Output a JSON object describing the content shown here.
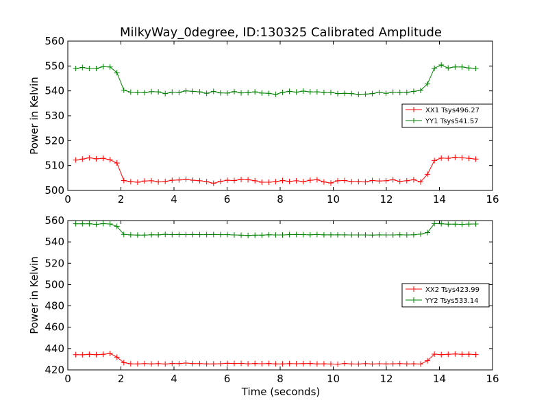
{
  "chart_data": [
    {
      "type": "line",
      "title": "MilkyWay_0degree, ID:130325 Calibrated Amplitude",
      "xlabel": "",
      "ylabel": "Power in Kelvin",
      "xlim": [
        0,
        16
      ],
      "ylim": [
        500,
        560
      ],
      "xticks": [
        0,
        2,
        4,
        6,
        8,
        10,
        12,
        14,
        16
      ],
      "yticks": [
        500,
        510,
        520,
        530,
        540,
        550,
        560
      ],
      "grid": false,
      "legend": "center-right",
      "x": [
        0.3,
        0.55,
        0.81,
        1.07,
        1.33,
        1.59,
        1.85,
        2.11,
        2.37,
        2.63,
        2.89,
        3.15,
        3.41,
        3.67,
        3.93,
        4.19,
        4.45,
        4.71,
        4.97,
        5.23,
        5.49,
        5.75,
        6.01,
        6.27,
        6.53,
        6.79,
        7.05,
        7.31,
        7.57,
        7.83,
        8.09,
        8.35,
        8.61,
        8.87,
        9.13,
        9.39,
        9.65,
        9.91,
        10.17,
        10.43,
        10.69,
        10.95,
        11.21,
        11.47,
        11.73,
        11.99,
        12.25,
        12.51,
        12.77,
        13.03,
        13.29,
        13.55,
        13.81,
        14.07,
        14.33,
        14.59,
        14.85,
        15.11,
        15.37
      ],
      "series": [
        {
          "name": "XX1 Tsys496.27",
          "color": "#ff0000",
          "values": [
            512.2,
            512.6,
            513.1,
            512.7,
            512.9,
            512.3,
            511.0,
            504.0,
            503.5,
            503.3,
            503.8,
            503.9,
            503.4,
            503.6,
            504.1,
            504.2,
            504.5,
            504.1,
            503.9,
            503.5,
            502.9,
            503.6,
            504.1,
            504.0,
            504.4,
            504.3,
            503.9,
            503.3,
            503.3,
            503.5,
            504.0,
            503.6,
            503.9,
            503.5,
            504.1,
            504.3,
            503.4,
            503.0,
            503.9,
            504.0,
            503.5,
            503.5,
            503.4,
            504.0,
            503.8,
            503.9,
            504.3,
            503.6,
            503.9,
            504.3,
            503.4,
            506.5,
            512.0,
            513.0,
            512.9,
            513.3,
            513.1,
            512.9,
            512.6
          ]
        },
        {
          "name": "YY1 Tsys541.57",
          "color": "#008000",
          "values": [
            549.0,
            549.4,
            549.0,
            549.0,
            549.7,
            549.6,
            547.3,
            540.3,
            539.5,
            539.4,
            539.3,
            539.7,
            539.6,
            538.9,
            539.5,
            539.4,
            540.0,
            539.8,
            539.6,
            539.0,
            539.8,
            539.2,
            539.1,
            539.7,
            539.2,
            539.3,
            539.6,
            539.1,
            539.0,
            538.6,
            539.4,
            539.8,
            539.5,
            539.9,
            539.6,
            539.6,
            539.4,
            539.4,
            538.9,
            539.0,
            538.9,
            538.6,
            538.7,
            538.9,
            539.4,
            539.0,
            539.5,
            539.4,
            539.4,
            539.8,
            540.2,
            542.8,
            549.1,
            550.4,
            549.2,
            549.6,
            549.6,
            549.2,
            549.0
          ]
        }
      ]
    },
    {
      "type": "line",
      "title": "",
      "xlabel": "Time (seconds)",
      "ylabel": "Power in Kelvin",
      "xlim": [
        0,
        16
      ],
      "ylim": [
        420,
        560
      ],
      "xticks": [
        0,
        2,
        4,
        6,
        8,
        10,
        12,
        14,
        16
      ],
      "yticks": [
        420,
        440,
        460,
        480,
        500,
        520,
        540,
        560
      ],
      "grid": false,
      "legend": "center-right",
      "x": [
        0.3,
        0.55,
        0.81,
        1.07,
        1.33,
        1.59,
        1.85,
        2.11,
        2.37,
        2.63,
        2.89,
        3.15,
        3.41,
        3.67,
        3.93,
        4.19,
        4.45,
        4.71,
        4.97,
        5.23,
        5.49,
        5.75,
        6.01,
        6.27,
        6.53,
        6.79,
        7.05,
        7.31,
        7.57,
        7.83,
        8.09,
        8.35,
        8.61,
        8.87,
        9.13,
        9.39,
        9.65,
        9.91,
        10.17,
        10.43,
        10.69,
        10.95,
        11.21,
        11.47,
        11.73,
        11.99,
        12.25,
        12.51,
        12.77,
        13.03,
        13.29,
        13.55,
        13.81,
        14.07,
        14.33,
        14.59,
        14.85,
        15.11,
        15.37
      ],
      "series": [
        {
          "name": "XX2 Tsys423.99",
          "color": "#ff0000",
          "values": [
            434.3,
            434.2,
            434.6,
            434.3,
            434.6,
            435.4,
            432.0,
            426.8,
            425.7,
            425.6,
            425.9,
            425.6,
            425.9,
            425.5,
            426.0,
            425.9,
            426.4,
            425.9,
            425.9,
            425.6,
            425.6,
            425.8,
            426.2,
            426.0,
            426.1,
            425.7,
            426.0,
            425.8,
            426.0,
            425.6,
            425.6,
            425.9,
            425.8,
            425.9,
            426.0,
            425.6,
            425.7,
            425.5,
            425.4,
            426.0,
            425.6,
            425.5,
            425.9,
            425.5,
            425.8,
            425.6,
            425.7,
            425.9,
            425.6,
            425.7,
            425.5,
            428.6,
            434.8,
            434.3,
            434.6,
            434.9,
            434.6,
            434.7,
            434.4
          ]
        },
        {
          "name": "YY2 Tsys533.14",
          "color": "#008000",
          "values": [
            557.0,
            557.0,
            557.0,
            556.5,
            557.1,
            556.8,
            554.6,
            547.0,
            546.6,
            546.4,
            546.4,
            546.7,
            546.6,
            547.1,
            546.8,
            546.9,
            546.8,
            546.9,
            546.8,
            546.8,
            546.9,
            546.8,
            546.8,
            546.5,
            546.3,
            546.0,
            546.3,
            546.3,
            546.7,
            546.5,
            546.5,
            546.8,
            546.9,
            546.8,
            546.7,
            546.9,
            546.6,
            546.6,
            546.6,
            546.6,
            546.5,
            546.5,
            546.5,
            546.4,
            546.6,
            546.5,
            546.5,
            546.7,
            546.5,
            546.7,
            547.3,
            548.8,
            557.2,
            557.0,
            556.6,
            556.6,
            556.5,
            556.7,
            556.8
          ]
        }
      ]
    }
  ]
}
